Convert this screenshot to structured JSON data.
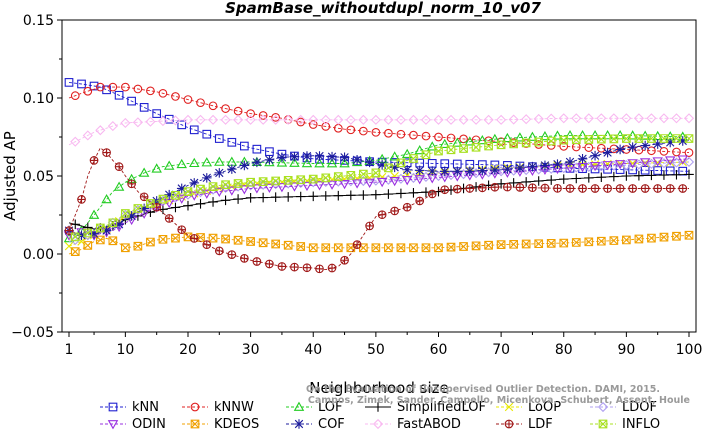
{
  "chart_data": {
    "type": "line",
    "title": "SpamBase_withoutdupl_norm_10_v07",
    "xlabel": "Neighborhood size",
    "ylabel": "Adjusted AP",
    "xlim": [
      1,
      100
    ],
    "ylim": [
      -0.05,
      0.15
    ],
    "xticks": [
      "1",
      "10",
      "20",
      "30",
      "40",
      "50",
      "60",
      "70",
      "80",
      "90",
      "100"
    ],
    "yticks": [
      "−0.05",
      "0.00",
      "0.05",
      "0.10",
      "0.15"
    ],
    "grid": false,
    "legend_position": "bottom",
    "watermark": [
      "On the Evaluation of Unsupervised Outlier Detection. DAMI, 2015.",
      "Campos, Zimek, Sander, Campello, Micenkova, Schubert, Assent, Houle"
    ],
    "series": [
      {
        "name": "kNN",
        "color": "#2020d0",
        "marker": "square",
        "line": "dash",
        "keypoints": [
          [
            1,
            0.11
          ],
          [
            3,
            0.109
          ],
          [
            6,
            0.107
          ],
          [
            10,
            0.1
          ],
          [
            15,
            0.09
          ],
          [
            20,
            0.081
          ],
          [
            25,
            0.074
          ],
          [
            30,
            0.068
          ],
          [
            35,
            0.064
          ],
          [
            40,
            0.061
          ],
          [
            45,
            0.06
          ],
          [
            50,
            0.059
          ],
          [
            60,
            0.058
          ],
          [
            70,
            0.057
          ],
          [
            80,
            0.055
          ],
          [
            90,
            0.054
          ],
          [
            100,
            0.053
          ]
        ]
      },
      {
        "name": "kNNW",
        "color": "#e02020",
        "marker": "circle",
        "line": "dash",
        "keypoints": [
          [
            1,
            0.1
          ],
          [
            3,
            0.103
          ],
          [
            6,
            0.107
          ],
          [
            10,
            0.107
          ],
          [
            15,
            0.104
          ],
          [
            20,
            0.099
          ],
          [
            25,
            0.094
          ],
          [
            30,
            0.09
          ],
          [
            35,
            0.087
          ],
          [
            40,
            0.083
          ],
          [
            45,
            0.08
          ],
          [
            50,
            0.078
          ],
          [
            60,
            0.075
          ],
          [
            70,
            0.072
          ],
          [
            80,
            0.069
          ],
          [
            90,
            0.067
          ],
          [
            100,
            0.065
          ]
        ]
      },
      {
        "name": "LOF",
        "color": "#22cc22",
        "marker": "triangle",
        "line": "dash",
        "keypoints": [
          [
            1,
            0.01
          ],
          [
            3,
            0.015
          ],
          [
            5,
            0.025
          ],
          [
            8,
            0.04
          ],
          [
            10,
            0.046
          ],
          [
            13,
            0.052
          ],
          [
            16,
            0.056
          ],
          [
            20,
            0.058
          ],
          [
            25,
            0.059
          ],
          [
            30,
            0.059
          ],
          [
            40,
            0.058
          ],
          [
            45,
            0.058
          ],
          [
            50,
            0.06
          ],
          [
            55,
            0.064
          ],
          [
            60,
            0.07
          ],
          [
            70,
            0.074
          ],
          [
            80,
            0.076
          ],
          [
            90,
            0.076
          ],
          [
            100,
            0.075
          ]
        ]
      },
      {
        "name": "SimplifiedLOF",
        "color": "#000000",
        "marker": "plus",
        "line": "solid",
        "keypoints": [
          [
            1,
            0.02
          ],
          [
            3,
            0.018
          ],
          [
            5,
            0.016
          ],
          [
            8,
            0.018
          ],
          [
            10,
            0.022
          ],
          [
            15,
            0.028
          ],
          [
            20,
            0.031
          ],
          [
            25,
            0.034
          ],
          [
            30,
            0.036
          ],
          [
            40,
            0.037
          ],
          [
            50,
            0.038
          ],
          [
            60,
            0.04
          ],
          [
            70,
            0.045
          ],
          [
            80,
            0.048
          ],
          [
            90,
            0.05
          ],
          [
            100,
            0.051
          ]
        ]
      },
      {
        "name": "LoOP",
        "color": "#e8e800",
        "marker": "x",
        "line": "dash",
        "keypoints": [
          [
            1,
            0.005
          ],
          [
            3,
            0.008
          ],
          [
            5,
            0.012
          ],
          [
            8,
            0.018
          ],
          [
            10,
            0.024
          ],
          [
            15,
            0.032
          ],
          [
            20,
            0.038
          ],
          [
            25,
            0.042
          ],
          [
            30,
            0.045
          ],
          [
            40,
            0.047
          ],
          [
            50,
            0.049
          ],
          [
            60,
            0.052
          ],
          [
            70,
            0.055
          ],
          [
            80,
            0.057
          ],
          [
            90,
            0.058
          ],
          [
            100,
            0.059
          ]
        ]
      },
      {
        "name": "LDOF",
        "color": "#b0a0f0",
        "marker": "diamond",
        "line": "dash",
        "keypoints": [
          [
            1,
            0.008
          ],
          [
            3,
            0.01
          ],
          [
            5,
            0.014
          ],
          [
            8,
            0.02
          ],
          [
            10,
            0.025
          ],
          [
            15,
            0.033
          ],
          [
            20,
            0.038
          ],
          [
            25,
            0.042
          ],
          [
            30,
            0.044
          ],
          [
            40,
            0.046
          ],
          [
            50,
            0.047
          ],
          [
            60,
            0.05
          ],
          [
            70,
            0.053
          ],
          [
            80,
            0.055
          ],
          [
            90,
            0.057
          ],
          [
            100,
            0.059
          ]
        ]
      },
      {
        "name": "ODIN",
        "color": "#9a30e0",
        "marker": "triangle-down",
        "line": "dash",
        "keypoints": [
          [
            1,
            0.012
          ],
          [
            3,
            0.014
          ],
          [
            5,
            0.012
          ],
          [
            8,
            0.015
          ],
          [
            10,
            0.02
          ],
          [
            15,
            0.03
          ],
          [
            20,
            0.037
          ],
          [
            25,
            0.04
          ],
          [
            30,
            0.042
          ],
          [
            40,
            0.044
          ],
          [
            50,
            0.046
          ],
          [
            60,
            0.049
          ],
          [
            70,
            0.052
          ],
          [
            80,
            0.055
          ],
          [
            90,
            0.058
          ],
          [
            100,
            0.061
          ]
        ]
      },
      {
        "name": "KDEOS",
        "color": "#f0a000",
        "marker": "square-x",
        "line": "dash",
        "keypoints": [
          [
            1,
            0.0
          ],
          [
            3,
            0.003
          ],
          [
            5,
            0.008
          ],
          [
            7,
            0.01
          ],
          [
            9,
            0.007
          ],
          [
            10,
            0.004
          ],
          [
            12,
            0.005
          ],
          [
            15,
            0.009
          ],
          [
            20,
            0.011
          ],
          [
            25,
            0.01
          ],
          [
            30,
            0.008
          ],
          [
            35,
            0.006
          ],
          [
            40,
            0.004
          ],
          [
            45,
            0.004
          ],
          [
            50,
            0.004
          ],
          [
            60,
            0.004
          ],
          [
            70,
            0.006
          ],
          [
            80,
            0.007
          ],
          [
            90,
            0.009
          ],
          [
            100,
            0.012
          ]
        ]
      },
      {
        "name": "COF",
        "color": "#1c1c9c",
        "marker": "asterisk",
        "line": "dash",
        "keypoints": [
          [
            1,
            0.015
          ],
          [
            3,
            0.012
          ],
          [
            5,
            0.013
          ],
          [
            8,
            0.016
          ],
          [
            10,
            0.022
          ],
          [
            15,
            0.034
          ],
          [
            20,
            0.044
          ],
          [
            25,
            0.052
          ],
          [
            30,
            0.058
          ],
          [
            35,
            0.062
          ],
          [
            40,
            0.063
          ],
          [
            45,
            0.062
          ],
          [
            50,
            0.058
          ],
          [
            55,
            0.054
          ],
          [
            60,
            0.053
          ],
          [
            65,
            0.053
          ],
          [
            70,
            0.054
          ],
          [
            80,
            0.058
          ],
          [
            90,
            0.068
          ],
          [
            100,
            0.073
          ]
        ]
      },
      {
        "name": "FastABOD",
        "color": "#f8b8f0",
        "marker": "diamond",
        "line": "dash",
        "keypoints": [
          [
            1,
            0.07
          ],
          [
            3,
            0.074
          ],
          [
            5,
            0.078
          ],
          [
            8,
            0.082
          ],
          [
            10,
            0.084
          ],
          [
            15,
            0.085
          ],
          [
            20,
            0.086
          ],
          [
            25,
            0.086
          ],
          [
            30,
            0.086
          ],
          [
            40,
            0.086
          ],
          [
            50,
            0.086
          ],
          [
            60,
            0.086
          ],
          [
            70,
            0.086
          ],
          [
            80,
            0.087
          ],
          [
            90,
            0.087
          ],
          [
            100,
            0.087
          ]
        ]
      },
      {
        "name": "LDF",
        "color": "#a01818",
        "marker": "circle-plus",
        "line": "dash",
        "keypoints": [
          [
            1,
            0.015
          ],
          [
            2,
            0.025
          ],
          [
            3,
            0.035
          ],
          [
            4,
            0.05
          ],
          [
            5,
            0.06
          ],
          [
            6,
            0.068
          ],
          [
            7,
            0.065
          ],
          [
            8,
            0.06
          ],
          [
            9,
            0.056
          ],
          [
            10,
            0.05
          ],
          [
            12,
            0.04
          ],
          [
            15,
            0.03
          ],
          [
            20,
            0.012
          ],
          [
            25,
            0.002
          ],
          [
            30,
            -0.004
          ],
          [
            35,
            -0.008
          ],
          [
            40,
            -0.009
          ],
          [
            42,
            -0.01
          ],
          [
            44,
            -0.008
          ],
          [
            46,
            0.0
          ],
          [
            48,
            0.012
          ],
          [
            50,
            0.024
          ],
          [
            55,
            0.03
          ],
          [
            58,
            0.036
          ],
          [
            60,
            0.041
          ],
          [
            70,
            0.043
          ],
          [
            80,
            0.042
          ],
          [
            90,
            0.042
          ],
          [
            100,
            0.042
          ]
        ]
      },
      {
        "name": "INFLO",
        "color": "#a8e020",
        "marker": "square-x",
        "line": "dash",
        "keypoints": [
          [
            1,
            0.01
          ],
          [
            3,
            0.012
          ],
          [
            5,
            0.015
          ],
          [
            8,
            0.02
          ],
          [
            10,
            0.026
          ],
          [
            15,
            0.034
          ],
          [
            20,
            0.04
          ],
          [
            25,
            0.044
          ],
          [
            30,
            0.046
          ],
          [
            40,
            0.048
          ],
          [
            50,
            0.052
          ],
          [
            55,
            0.06
          ],
          [
            60,
            0.066
          ],
          [
            70,
            0.07
          ],
          [
            80,
            0.073
          ],
          [
            90,
            0.074
          ],
          [
            100,
            0.074
          ]
        ]
      }
    ]
  }
}
